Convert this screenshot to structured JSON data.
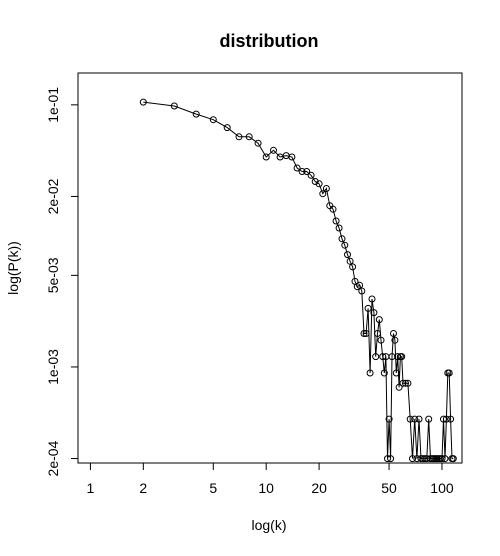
{
  "chart_data": {
    "type": "line",
    "title": "distribution",
    "xlabel": "log(k)",
    "ylabel": "log(P(k))",
    "x_scale": "log",
    "y_scale": "log",
    "xlim": [
      0.85,
      130
    ],
    "ylim": [
      0.000185,
      0.175
    ],
    "x_ticks": [
      {
        "value": 1,
        "label": "1"
      },
      {
        "value": 2,
        "label": "2"
      },
      {
        "value": 5,
        "label": "5"
      },
      {
        "value": 10,
        "label": "10"
      },
      {
        "value": 20,
        "label": "20"
      },
      {
        "value": 50,
        "label": "50"
      },
      {
        "value": 100,
        "label": "100"
      }
    ],
    "y_ticks": [
      {
        "value": 0.0002,
        "label": "2e-04"
      },
      {
        "value": 0.001,
        "label": "1e-03"
      },
      {
        "value": 0.005,
        "label": "5e-03"
      },
      {
        "value": 0.02,
        "label": "2e-02"
      },
      {
        "value": 0.1,
        "label": "1e-01"
      }
    ],
    "grid": false,
    "legend": "none",
    "points": [
      [
        2,
        0.105
      ],
      [
        3,
        0.098
      ],
      [
        4,
        0.085
      ],
      [
        5,
        0.077
      ],
      [
        6,
        0.067
      ],
      [
        7,
        0.057
      ],
      [
        8,
        0.057
      ],
      [
        9,
        0.051
      ],
      [
        10,
        0.04
      ],
      [
        11,
        0.045
      ],
      [
        12,
        0.04
      ],
      [
        13,
        0.041
      ],
      [
        14,
        0.04
      ],
      [
        15,
        0.033
      ],
      [
        16,
        0.031
      ],
      [
        17,
        0.031
      ],
      [
        18,
        0.029
      ],
      [
        19,
        0.026
      ],
      [
        20,
        0.025
      ],
      [
        21,
        0.021
      ],
      [
        22,
        0.023
      ],
      [
        23,
        0.017
      ],
      [
        24,
        0.016
      ],
      [
        25,
        0.013
      ],
      [
        26,
        0.0115
      ],
      [
        27,
        0.0095
      ],
      [
        28,
        0.0085
      ],
      [
        29,
        0.0072
      ],
      [
        30,
        0.0064
      ],
      [
        31,
        0.0058
      ],
      [
        32,
        0.0045
      ],
      [
        33,
        0.0041
      ],
      [
        34,
        0.0042
      ],
      [
        35,
        0.0038
      ],
      [
        36,
        0.0018
      ],
      [
        37,
        0.0018
      ],
      [
        38,
        0.0028
      ],
      [
        39,
        0.0009
      ],
      [
        40,
        0.0033
      ],
      [
        41,
        0.0026
      ],
      [
        42,
        0.0012
      ],
      [
        43,
        0.0018
      ],
      [
        44,
        0.0023
      ],
      [
        45,
        0.0016
      ],
      [
        46,
        0.0012
      ],
      [
        47,
        0.0009
      ],
      [
        48,
        0.0012
      ],
      [
        49,
        0.0002
      ],
      [
        50,
        0.0004
      ],
      [
        51,
        0.0002
      ],
      [
        52,
        0.0012
      ],
      [
        53,
        0.0018
      ],
      [
        54,
        0.0016
      ],
      [
        55,
        0.0009
      ],
      [
        56,
        0.0012
      ],
      [
        57,
        0.0007
      ],
      [
        58,
        0.0012
      ],
      [
        59,
        0.0012
      ],
      [
        60,
        0.00075
      ],
      [
        62,
        0.00075
      ],
      [
        64,
        0.00075
      ],
      [
        66,
        0.0004
      ],
      [
        68,
        0.0002
      ],
      [
        70,
        0.0004
      ],
      [
        72,
        0.0002
      ],
      [
        74,
        0.0004
      ],
      [
        76,
        0.0002
      ],
      [
        78,
        0.0002
      ],
      [
        80,
        0.0002
      ],
      [
        82,
        0.0002
      ],
      [
        84,
        0.0004
      ],
      [
        86,
        0.0002
      ],
      [
        88,
        0.0002
      ],
      [
        90,
        0.0002
      ],
      [
        92,
        0.0002
      ],
      [
        94,
        0.0002
      ],
      [
        96,
        0.0002
      ],
      [
        98,
        0.0002
      ],
      [
        100,
        0.0002
      ],
      [
        102,
        0.0004
      ],
      [
        104,
        0.0002
      ],
      [
        106,
        0.0004
      ],
      [
        108,
        0.0009
      ],
      [
        110,
        0.0009
      ],
      [
        112,
        0.0004
      ],
      [
        114,
        0.0002
      ],
      [
        116,
        0.0002
      ]
    ]
  }
}
